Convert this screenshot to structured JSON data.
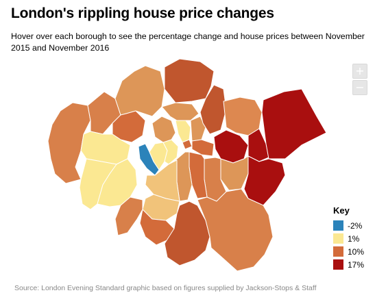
{
  "title": "London's rippling house price changes",
  "subtitle": "Hover over each borough to see the percentage change and house prices between November 2015 and November 2016",
  "zoom": {
    "in_label": "+",
    "out_label": "−"
  },
  "key": {
    "title": "Key",
    "items": [
      {
        "label": "-2%",
        "color": "#2b83ba"
      },
      {
        "label": "1%",
        "color": "#fbe892"
      },
      {
        "label": "10%",
        "color": "#d36b3a"
      },
      {
        "label": "17%",
        "color": "#a90f0f"
      }
    ]
  },
  "source": "Source: London Evening Standard graphic based on figures supplied by Jackson-Stops & Staff"
}
